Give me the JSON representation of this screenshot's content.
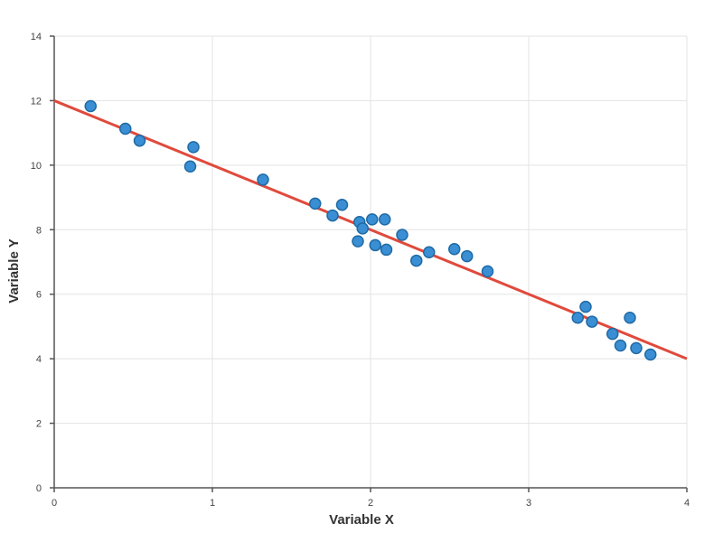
{
  "chart_data": {
    "type": "scatter",
    "title": "",
    "xlabel": "Variable X",
    "ylabel": "Variable Y",
    "xlim": [
      0,
      4
    ],
    "ylim": [
      0,
      14
    ],
    "xticks": [
      "0",
      "1",
      "2",
      "3",
      "4"
    ],
    "yticks": [
      "0",
      "2",
      "4",
      "6",
      "8",
      "10",
      "12",
      "14"
    ],
    "grid": true,
    "legend": "none",
    "colors": {
      "points": "#3a8fd4",
      "point_outline": "#1f6aa5",
      "trend": "#e04a3c"
    },
    "series": [
      {
        "points": [
          {
            "x": 0.23,
            "y": 11.83
          },
          {
            "x": 0.45,
            "y": 11.13
          },
          {
            "x": 0.54,
            "y": 10.76
          },
          {
            "x": 0.86,
            "y": 9.96
          },
          {
            "x": 0.88,
            "y": 10.56
          },
          {
            "x": 1.32,
            "y": 9.55
          },
          {
            "x": 1.65,
            "y": 8.81
          },
          {
            "x": 1.76,
            "y": 8.44
          },
          {
            "x": 1.82,
            "y": 8.77
          },
          {
            "x": 1.92,
            "y": 7.64
          },
          {
            "x": 1.93,
            "y": 8.24
          },
          {
            "x": 1.95,
            "y": 8.04
          },
          {
            "x": 2.01,
            "y": 8.32
          },
          {
            "x": 2.03,
            "y": 7.52
          },
          {
            "x": 2.09,
            "y": 8.32
          },
          {
            "x": 2.1,
            "y": 7.38
          },
          {
            "x": 2.2,
            "y": 7.84
          },
          {
            "x": 2.29,
            "y": 7.04
          },
          {
            "x": 2.37,
            "y": 7.3
          },
          {
            "x": 2.53,
            "y": 7.4
          },
          {
            "x": 2.61,
            "y": 7.18
          },
          {
            "x": 2.74,
            "y": 6.71
          },
          {
            "x": 3.31,
            "y": 5.27
          },
          {
            "x": 3.36,
            "y": 5.61
          },
          {
            "x": 3.4,
            "y": 5.15
          },
          {
            "x": 3.53,
            "y": 4.77
          },
          {
            "x": 3.58,
            "y": 4.41
          },
          {
            "x": 3.64,
            "y": 5.27
          },
          {
            "x": 3.68,
            "y": 4.33
          },
          {
            "x": 3.77,
            "y": 4.13
          }
        ]
      }
    ],
    "trend_line": {
      "x": [
        0,
        4
      ],
      "y": [
        12,
        4
      ]
    }
  }
}
